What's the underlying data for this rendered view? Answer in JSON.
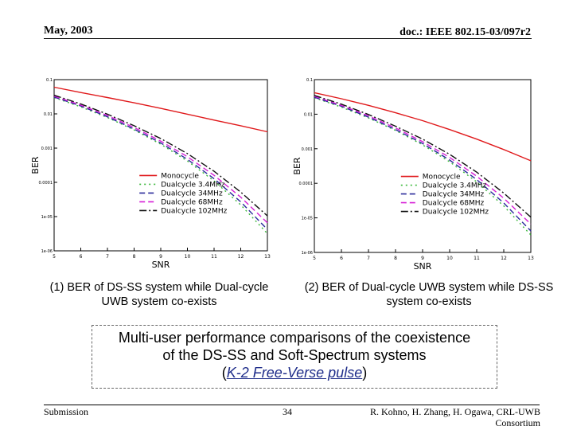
{
  "header": {
    "date": "May, 2003",
    "doc_id": "doc.: IEEE 802.15-03/097r2"
  },
  "captions": {
    "left": "(1) BER of DS-SS system while Dual-cycle UWB system co-exists",
    "right": "(2) BER of Dual-cycle UWB system while DS-SS system co-exists"
  },
  "slide_title": {
    "line1": "Multi-user performance comparisons of the coexistence",
    "line2": "of the DS-SS and Soft-Spectrum systems",
    "paren_open": "(",
    "pulse": "K-2 Free-Verse pulse",
    "paren_close": ")"
  },
  "footer": {
    "left": "Submission",
    "page": "34",
    "right": "R. Kohno, H. Zhang, H. Ogawa, CRL-UWB Consortium"
  },
  "colors": {
    "monocycle": "#e0191b",
    "dual3_4": "#3cb83c",
    "dual34": "#2a2a9a",
    "dual68": "#d61fd6",
    "dual102": "#111111"
  },
  "chart_data": [
    {
      "type": "line",
      "xlabel": "SNR",
      "ylabel": "BER",
      "xlim": [
        5,
        13
      ],
      "ylim_log10": [
        -6,
        -1
      ],
      "x_ticks": [
        "5",
        "6",
        "7",
        "8",
        "9",
        "10",
        "11",
        "12",
        "13"
      ],
      "y_ticks": [
        "1e-06",
        "1e-05",
        "0.0001",
        "0.001",
        "0.01",
        "0.1"
      ],
      "legend_position": "lower-center",
      "x": [
        5,
        6,
        7,
        8,
        9,
        10,
        11,
        12,
        13
      ],
      "series": [
        {
          "name": "Monocycle",
          "color_key": "monocycle",
          "dash": "solid",
          "values": [
            0.06,
            0.042,
            0.03,
            0.021,
            0.0145,
            0.0098,
            0.0066,
            0.0045,
            0.003
          ]
        },
        {
          "name": "Dualcycle 3.4MHz",
          "color_key": "dual3_4",
          "dash": "dotted",
          "values": [
            0.03,
            0.016,
            0.0078,
            0.0034,
            0.0013,
            0.00042,
            0.00011,
            2.2e-05,
            3.2e-06
          ]
        },
        {
          "name": "Dualcycle 34MHz",
          "color_key": "dual34",
          "dash": "dashed",
          "values": [
            0.031,
            0.017,
            0.0082,
            0.0036,
            0.00142,
            0.00047,
            0.000128,
            2.7e-05,
            4.2e-06
          ]
        },
        {
          "name": "Dualcycle 68MHz",
          "color_key": "dual68",
          "dash": "dashed",
          "values": [
            0.033,
            0.018,
            0.009,
            0.004,
            0.0016,
            0.00056,
            0.00016,
            3.7e-05,
            6.6e-06
          ]
        },
        {
          "name": "Dualcycle 102MHz",
          "color_key": "dual102",
          "dash": "dashdot",
          "values": [
            0.035,
            0.0195,
            0.0098,
            0.0045,
            0.0019,
            0.00069,
            0.00021,
            5.2e-05,
            1.05e-05
          ]
        }
      ]
    },
    {
      "type": "line",
      "xlabel": "SNR",
      "ylabel": "BER",
      "xlim": [
        5,
        13
      ],
      "ylim_log10": [
        -6,
        -1
      ],
      "x_ticks": [
        "5",
        "6",
        "7",
        "8",
        "9",
        "10",
        "11",
        "12",
        "13"
      ],
      "y_ticks": [
        "1e-06",
        "1e-05",
        "0.0001",
        "0.001",
        "0.01",
        "0.1"
      ],
      "legend_position": "lower-center",
      "x": [
        5,
        6,
        7,
        8,
        9,
        10,
        11,
        12,
        13
      ],
      "series": [
        {
          "name": "Monocycle",
          "color_key": "monocycle",
          "dash": "solid",
          "values": [
            0.042,
            0.028,
            0.018,
            0.011,
            0.0065,
            0.0036,
            0.0019,
            0.00095,
            0.00045
          ]
        },
        {
          "name": "Dualcycle 3.4MHz",
          "color_key": "dual3_4",
          "dash": "dotted",
          "values": [
            0.03,
            0.016,
            0.0078,
            0.0034,
            0.0013,
            0.00042,
            0.00011,
            2.2e-05,
            3.2e-06
          ]
        },
        {
          "name": "Dualcycle 34MHz",
          "color_key": "dual34",
          "dash": "dashed",
          "values": [
            0.031,
            0.017,
            0.0082,
            0.0036,
            0.00142,
            0.00047,
            0.000128,
            2.7e-05,
            4.2e-06
          ]
        },
        {
          "name": "Dualcycle 68MHz",
          "color_key": "dual68",
          "dash": "dashed",
          "values": [
            0.033,
            0.018,
            0.009,
            0.004,
            0.0016,
            0.00056,
            0.00016,
            3.7e-05,
            6.6e-06
          ]
        },
        {
          "name": "Dualcycle 102MHz",
          "color_key": "dual102",
          "dash": "dashdot",
          "values": [
            0.035,
            0.0195,
            0.0098,
            0.0045,
            0.0019,
            0.00069,
            0.00021,
            5.2e-05,
            1.05e-05
          ]
        }
      ]
    }
  ]
}
